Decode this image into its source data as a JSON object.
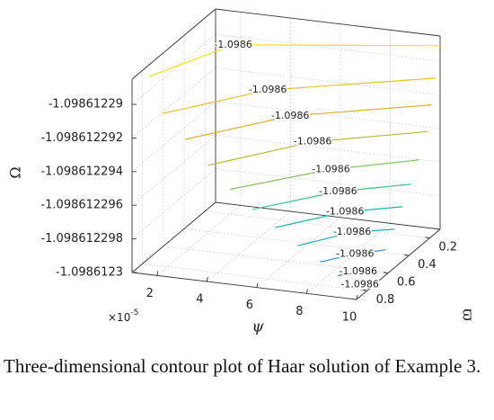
{
  "chart_data": {
    "type": "contour3d",
    "caption": "Three-dimensional contour plot of Haar solution of Example 3.",
    "xlabel": "ψ",
    "ylabel": "ϖ",
    "zlabel": "Ω",
    "x_multiplier": "×10",
    "x_multiplier_exponent": "-5",
    "xlim": [
      1e-05,
      0.0001
    ],
    "xticks": [
      {
        "value": 2e-05,
        "label": "2"
      },
      {
        "value": 4e-05,
        "label": "4"
      },
      {
        "value": 6e-05,
        "label": "6"
      },
      {
        "value": 8e-05,
        "label": "8"
      },
      {
        "value": 0.0001,
        "label": "10"
      }
    ],
    "ylim": [
      0.1,
      0.9
    ],
    "yticks": [
      0.2,
      0.4,
      0.6,
      0.8
    ],
    "zlim": [
      -1.0986123,
      -1.0986122885
    ],
    "zticks": [
      -1.09861229,
      -1.098612292,
      -1.098612294,
      -1.098612296,
      -1.098612298,
      -1.0986123
    ],
    "grid": true,
    "contours": [
      {
        "level": -1.09861228908,
        "value_label": "-1.0986",
        "color": "#f2e11e",
        "x": [
          1.09e-05,
          2.71e-05,
          0.0001
        ],
        "y": [
          0.756,
          0.34,
          0.1
        ]
      },
      {
        "level": -1.0986122908,
        "value_label": "-1.0986",
        "color": "#ebc12c",
        "x": [
          1.9e-05,
          4.6e-05,
          0.0001
        ],
        "y": [
          0.82,
          0.46,
          0.14
        ]
      },
      {
        "level": -1.09861229218,
        "value_label": "-1.0986",
        "color": "#e0b036",
        "x": [
          2.8e-05,
          5.5e-05,
          0.0001
        ],
        "y": [
          0.82,
          0.46,
          0.18
        ]
      },
      {
        "level": -1.09861229356,
        "value_label": "-1.0986",
        "color": "#b6bc3c",
        "x": [
          3.7e-05,
          6.4e-05,
          0.0001
        ],
        "y": [
          0.82,
          0.46,
          0.22
        ]
      },
      {
        "level": -1.09861229483,
        "value_label": "-1.0986",
        "color": "#7cc25c",
        "x": [
          4.6e-05,
          7.3e-05,
          0.0001
        ],
        "y": [
          0.82,
          0.5,
          0.3
        ]
      },
      {
        "level": -1.09861229586,
        "value_label": "-1.0986",
        "color": "#3bc48b",
        "x": [
          5.5e-05,
          7.75e-05,
          0.0001
        ],
        "y": [
          0.82,
          0.54,
          0.38
        ]
      },
      {
        "level": -1.09861229678,
        "value_label": "-1.0986",
        "color": "#1cb6ad",
        "x": [
          6.4e-05,
          8.2e-05,
          0.0001
        ],
        "y": [
          0.82,
          0.58,
          0.46
        ]
      },
      {
        "level": -1.0986122977,
        "value_label": "-1.0986",
        "color": "#18a7cf",
        "x": [
          7.3e-05,
          8.65e-05,
          0.0001
        ],
        "y": [
          0.82,
          0.62,
          0.54
        ]
      },
      {
        "level": -1.0986122985,
        "value_label": "-1.0986",
        "color": "#2a92e0",
        "x": [
          8.2e-05,
          9.1e-05,
          0.0001
        ],
        "y": [
          0.82,
          0.7,
          0.62
        ]
      },
      {
        "level": -1.0986122992,
        "value_label": "-1.0986",
        "color": "#3873ee",
        "x": [
          8.92e-05,
          9.46e-05,
          0.0001
        ],
        "y": [
          0.82,
          0.756,
          0.7
        ]
      },
      {
        "level": -1.09861229966,
        "value_label": "-1.0986",
        "color": "#4650f2",
        "x": [
          9.46e-05,
          9.73e-05,
          0.0001
        ],
        "y": [
          0.836,
          0.804,
          0.78
        ]
      }
    ]
  }
}
